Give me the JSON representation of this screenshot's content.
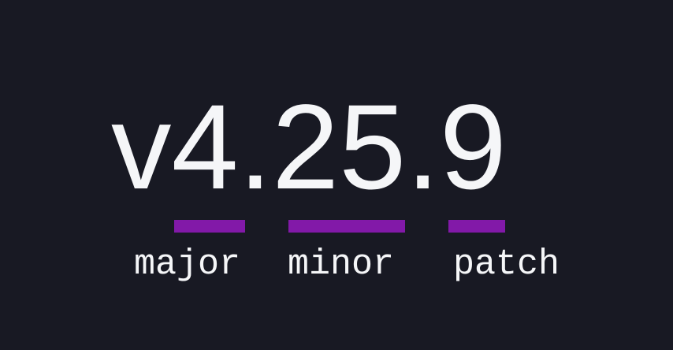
{
  "theme": {
    "background_color": "#181923",
    "text_color": "#f5f6f8",
    "accent_purple": "#8219a8"
  },
  "version": {
    "full": "v4.25.9",
    "prefix": "v",
    "major": "4",
    "minor": "25",
    "patch": "9"
  },
  "segments": [
    {
      "label": "major"
    },
    {
      "label": "minor"
    },
    {
      "label": "patch"
    }
  ]
}
